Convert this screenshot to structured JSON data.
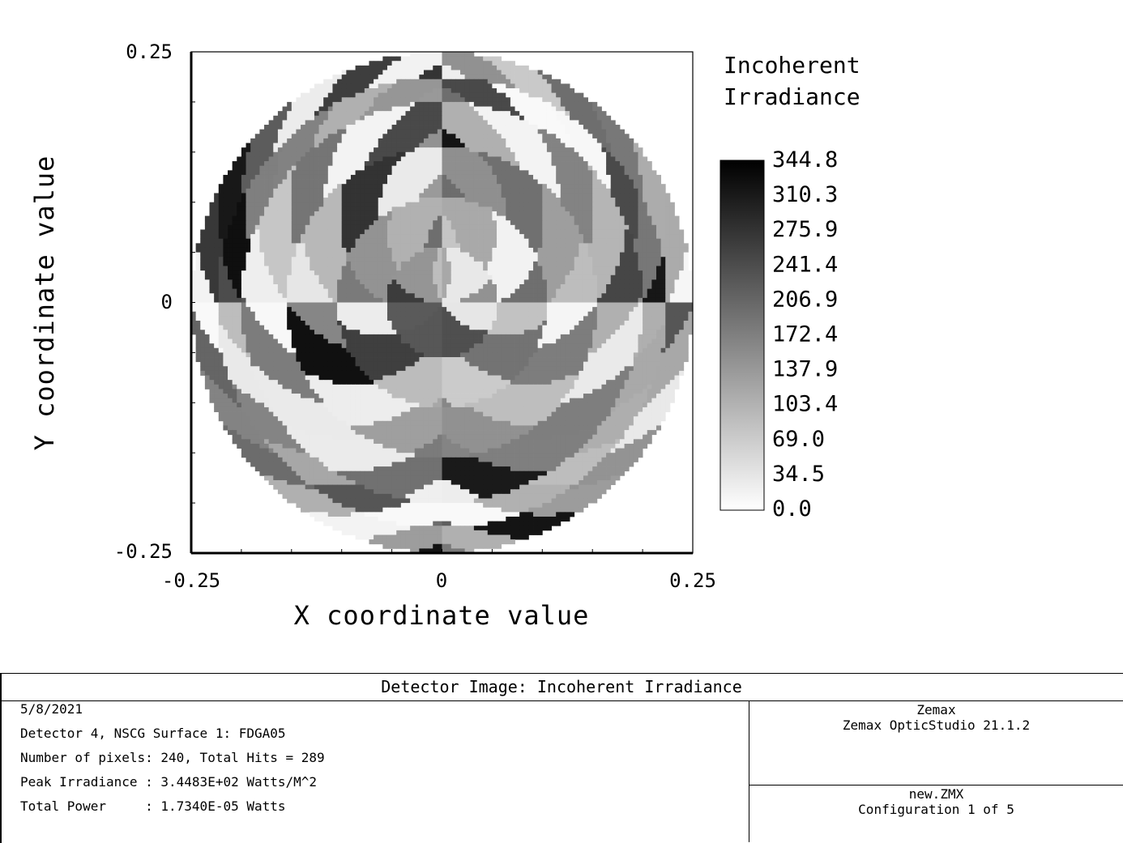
{
  "chart_data": {
    "type": "heatmap",
    "title": "",
    "xlabel": "X coordinate value",
    "ylabel": "Y coordinate value",
    "xlim": [
      -0.25,
      0.25
    ],
    "ylim": [
      -0.25,
      0.25
    ],
    "x_tick_labels": [
      "-0.25",
      "0",
      "0.25"
    ],
    "y_tick_labels": [
      "0.25",
      "0",
      "-0.25"
    ],
    "grid": false,
    "colormap": "grayscale (white = 0, black = max)",
    "legend": {
      "title_lines": [
        "Incoherent",
        "Irradiance"
      ],
      "placement": "right",
      "ticks": [
        "344.8",
        "310.3",
        "275.9",
        "241.4",
        "206.9",
        "172.4",
        "137.9",
        "103.4",
        "69.0",
        "34.5",
        "0.0"
      ],
      "min": 0.0,
      "max": 344.8
    },
    "aperture_radius": 0.25
  },
  "info": {
    "title": "Detector Image: Incoherent Irradiance",
    "lines": [
      "5/8/2021",
      "Detector 4, NSCG Surface 1: FDGA05",
      "Number of pixels: 240, Total Hits = 289",
      "Peak Irradiance : 3.4483E+02 Watts/M^2",
      "Total Power     : 1.7340E-05 Watts"
    ],
    "right_upper": [
      "Zemax",
      "Zemax OpticStudio 21.1.2"
    ],
    "right_lower": [
      "new.ZMX",
      "Configuration 1 of 5"
    ]
  },
  "colors": {
    "background": "#ffffff",
    "axis": "#000000",
    "max_color": "#000000",
    "min_color": "#ffffff"
  }
}
